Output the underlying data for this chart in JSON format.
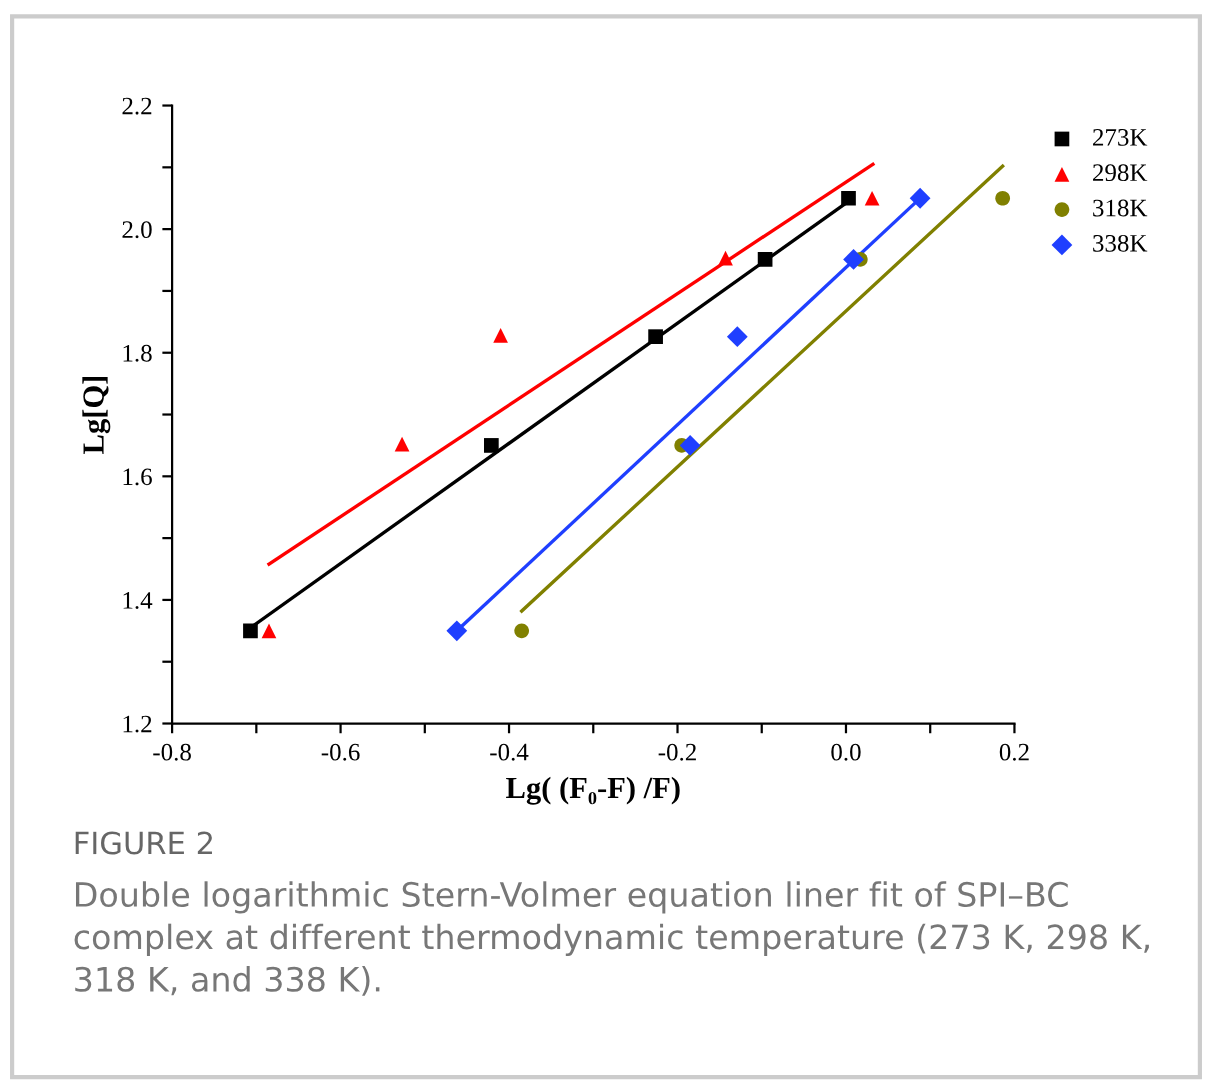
{
  "chart_data": {
    "type": "scatter",
    "xlabel": "Lg( (F₀-F) /F)",
    "ylabel": "Lg[Q]",
    "xlim": [
      -0.8,
      0.2
    ],
    "ylim": [
      1.2,
      2.2
    ],
    "xticks": [
      -0.8,
      {
        "value": -0.7,
        "label": null
      },
      -0.6,
      {
        "value": -0.5,
        "label": null
      },
      -0.4,
      {
        "value": -0.3,
        "label": null
      },
      -0.2,
      {
        "value": -0.1,
        "label": null
      },
      {
        "value": 0,
        "label": "0.0"
      },
      {
        "value": 0.1,
        "label": null
      },
      0.2
    ],
    "yticks": [
      1.2,
      {
        "value": 1.3,
        "label": null
      },
      1.4,
      {
        "value": 1.5,
        "label": null
      },
      1.6,
      {
        "value": 1.7,
        "label": null
      },
      1.8,
      {
        "value": 1.9,
        "label": null
      },
      {
        "value": 2,
        "label": "2.0"
      },
      {
        "value": 2.1,
        "label": null
      },
      2.2
    ],
    "grid": false,
    "legend": "top right",
    "series": [
      {
        "name": "273K",
        "color": "#000000",
        "marker": "square",
        "x": [
          -0.707,
          -0.421,
          -0.226,
          -0.096,
          0.003
        ],
        "values": [
          1.35,
          1.65,
          1.826,
          1.951,
          2.05
        ]
      },
      {
        "name": "298K",
        "color": "#ff0000",
        "marker": "triangle",
        "x": [
          -0.685,
          -0.527,
          -0.41,
          -0.143,
          0.031
        ],
        "values": [
          1.35,
          1.652,
          1.828,
          1.953,
          2.05
        ]
      },
      {
        "name": "318K",
        "color": "#808000",
        "marker": "circle",
        "x": [
          -0.385,
          -0.195,
          0.017,
          0.186
        ],
        "values": [
          1.35,
          1.65,
          1.951,
          2.05
        ]
      },
      {
        "name": "338K",
        "color": "#1f3fff",
        "marker": "diamond",
        "x": [
          -0.462,
          -0.185,
          -0.129,
          0.009,
          0.088
        ],
        "values": [
          1.35,
          1.65,
          1.826,
          1.951,
          2.05
        ]
      },
      {
        "type": "line",
        "color": "#000000",
        "x": [
          -0.707,
          0.003
        ],
        "values": [
          1.355,
          2.045
        ]
      },
      {
        "type": "line",
        "color": "#ff0000",
        "x": [
          -0.685,
          0.032
        ],
        "values": [
          1.458,
          2.105
        ]
      },
      {
        "type": "line",
        "color": "#808000",
        "x": [
          -0.385,
          0.186
        ],
        "values": [
          1.382,
          2.102
        ]
      },
      {
        "type": "line",
        "color": "#1f3fff",
        "x": [
          -0.462,
          0.088
        ],
        "values": [
          1.35,
          2.05
        ]
      }
    ],
    "annotations": [
      "FIGURE 2",
      "Double logarithmic Stern-Volmer equation liner fit of SPI–BC complex at different thermodynamic temperature (273 K, 298 K, 318 K, and 338 K)."
    ]
  }
}
